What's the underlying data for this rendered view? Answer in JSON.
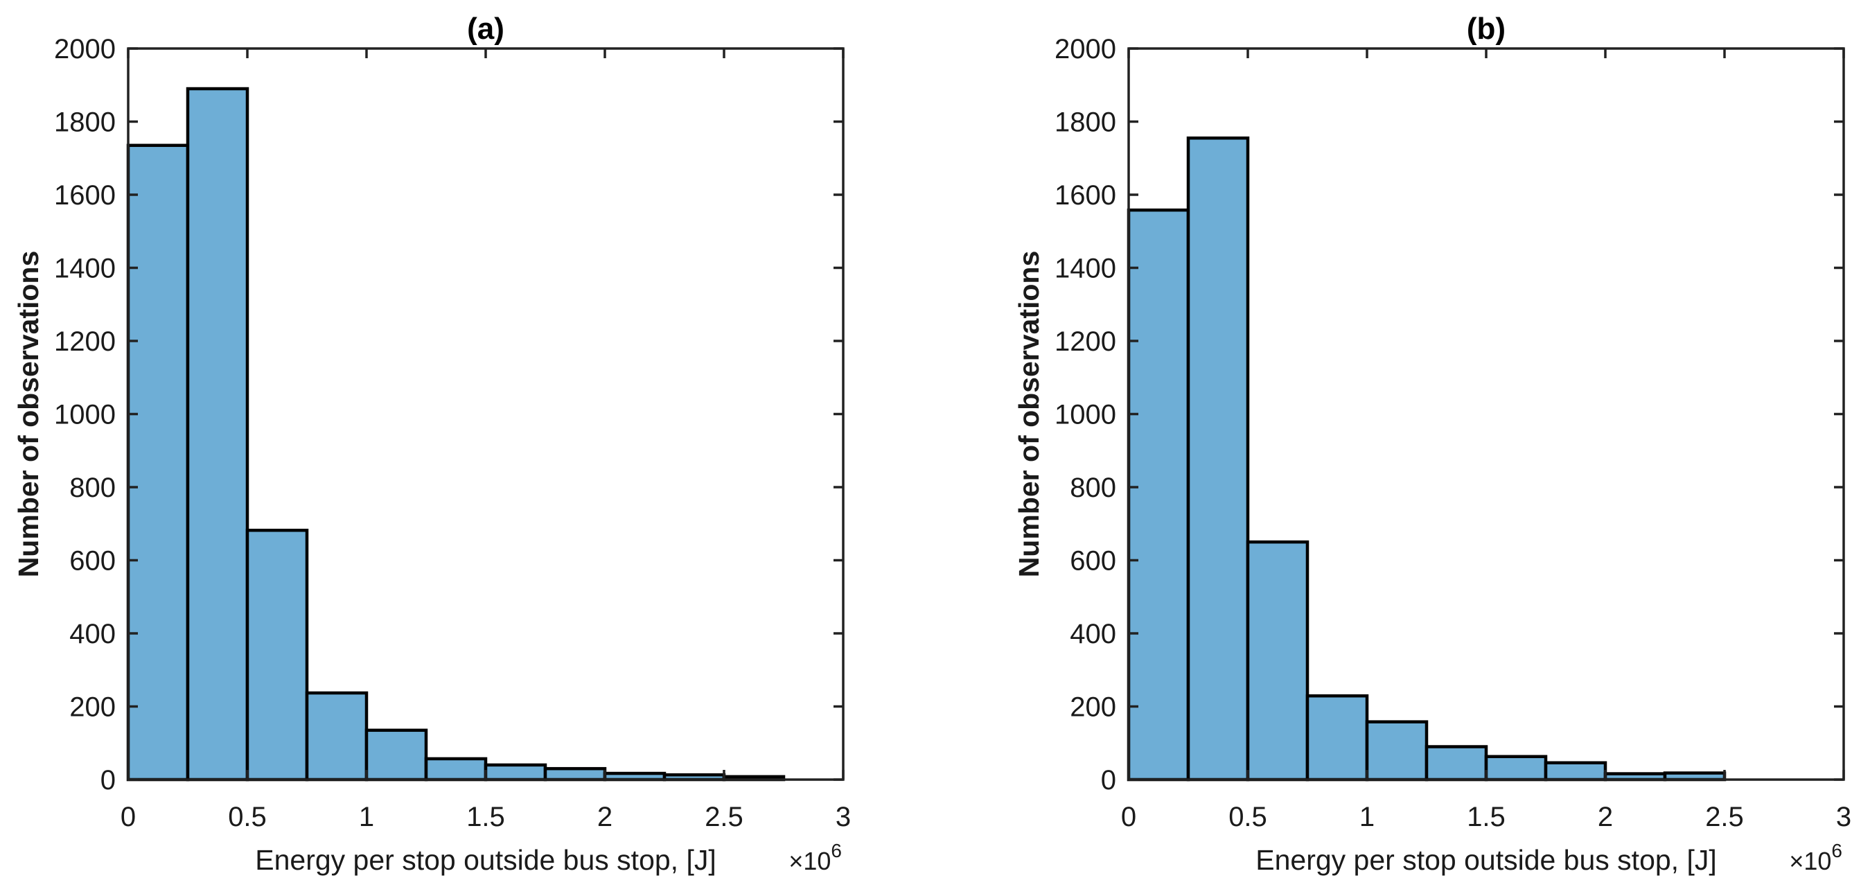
{
  "style": {
    "background": "#ffffff",
    "bar_fill": "#6eaed6",
    "bar_edge": "#000000",
    "axis_color": "#222222",
    "text_color": "#1a1a1a"
  },
  "chart_data": [
    {
      "type": "bar",
      "panel": "a",
      "title": "(a)",
      "xlabel": "Energy per stop outside bus stop, [J]",
      "x_multiplier_base": "×10",
      "x_multiplier_exp": "6",
      "ylabel": "Number of observations",
      "xlim": [
        0,
        3
      ],
      "ylim": [
        0,
        2000
      ],
      "grid": false,
      "legend": null,
      "xtick_labels": [
        "0",
        "0.5",
        "1",
        "1.5",
        "2",
        "2.5",
        "3"
      ],
      "ytick_labels": [
        "0",
        "200",
        "400",
        "600",
        "800",
        "1000",
        "1200",
        "1400",
        "1600",
        "1800",
        "2000"
      ],
      "bin_start": 0,
      "bin_width": 0.25,
      "bin_edges": [
        0,
        0.25,
        0.5,
        0.75,
        1.0,
        1.25,
        1.5,
        1.75,
        2.0,
        2.25,
        2.5,
        2.75,
        3.0
      ],
      "values": [
        1735,
        1890,
        682,
        237,
        135,
        57,
        40,
        30,
        17,
        13,
        8,
        0
      ]
    },
    {
      "type": "bar",
      "panel": "b",
      "title": "(b)",
      "xlabel": "Energy per stop outside bus stop, [J]",
      "x_multiplier_base": "×10",
      "x_multiplier_exp": "6",
      "ylabel": "Number of observations",
      "xlim": [
        0,
        3
      ],
      "ylim": [
        0,
        2000
      ],
      "grid": false,
      "legend": null,
      "xtick_labels": [
        "0",
        "0.5",
        "1",
        "1.5",
        "2",
        "2.5",
        "3"
      ],
      "ytick_labels": [
        "0",
        "200",
        "400",
        "600",
        "800",
        "1000",
        "1200",
        "1400",
        "1600",
        "1800",
        "2000"
      ],
      "bin_start": 0,
      "bin_width": 0.25,
      "bin_edges": [
        0,
        0.25,
        0.5,
        0.75,
        1.0,
        1.25,
        1.5,
        1.75,
        2.0,
        2.25,
        2.5,
        2.75,
        3.0
      ],
      "values": [
        1558,
        1755,
        650,
        229,
        158,
        90,
        63,
        46,
        16,
        18,
        0,
        0
      ]
    }
  ]
}
